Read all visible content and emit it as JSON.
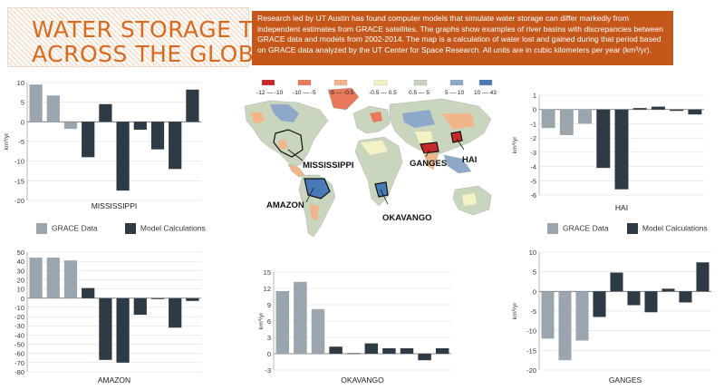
{
  "header": {
    "title_line1": "WATER STORAGE TRENDS",
    "title_line2": "ACROSS THE GLOBE",
    "description": "Research led by UT Austin has found computer models that simulate water storage can differ markedly from independent estimates from GRACE satellites. The graphs show examples of river basins with discrepancies between GRACE data and models from 2002-2014. The map is a calculation of water lost and gained during that period based on GRACE data analyzed by the UT Center for Space Research. All units are in cubic kilometers per year (km³/yr)."
  },
  "colors": {
    "grace": "#9aa5ae",
    "model": "#2e3a44",
    "accent_orange": "#c6571a",
    "title_orange": "#d66a1f"
  },
  "legend": {
    "grace_label": "GRACE Data",
    "model_label": "Model Calculations"
  },
  "map": {
    "legend_bins": [
      {
        "label": "-12 — -10",
        "color": "#c8282a"
      },
      {
        "label": "-10 — -5",
        "color": "#e9785a"
      },
      {
        "label": "-5 — -0.5",
        "color": "#f2b58a"
      },
      {
        "label": "-0.5 — 0.5",
        "color": "#f4f2c4"
      },
      {
        "label": "0.5 — 5",
        "color": "#c5d3b8"
      },
      {
        "label": "5 — 10",
        "color": "#8ea8c9"
      },
      {
        "label": "10 — 43",
        "color": "#4a79b7"
      }
    ],
    "labels": {
      "mississippi": "MISSISSIPPI",
      "amazon": "AMAZON",
      "ganges": "GANGES",
      "hai": "HAI",
      "okavango": "OKAVANGO"
    }
  },
  "chart_data": [
    {
      "type": "bar",
      "title": "MISSISSIPPI",
      "ylabel": "km³/yr",
      "ylim": [
        -20,
        10
      ],
      "yticks": [
        10,
        5,
        0,
        -5,
        -10,
        -15,
        -20
      ],
      "series": [
        {
          "name": "GRACE Data",
          "values": [
            9.5,
            6.7,
            -1.8
          ]
        },
        {
          "name": "Model Calculations",
          "values": [
            -9,
            4.5,
            -17.5,
            -2,
            -7,
            -12,
            8.2
          ]
        }
      ]
    },
    {
      "type": "bar",
      "title": "HAI",
      "ylabel": "km³/yr",
      "ylim": [
        -6,
        1
      ],
      "yticks": [
        1,
        0,
        -1,
        -2,
        -3,
        -4,
        -5,
        -6
      ],
      "series": [
        {
          "name": "GRACE Data",
          "values": [
            -1.3,
            -1.8,
            -1.0
          ]
        },
        {
          "name": "Model Calculations",
          "values": [
            -4.1,
            -5.6,
            0.1,
            0.2,
            -0.1,
            -0.35
          ]
        }
      ]
    },
    {
      "type": "bar",
      "title": "AMAZON",
      "ylim": [
        -80,
        50
      ],
      "yticks": [
        50,
        40,
        30,
        20,
        10,
        0,
        -10,
        -20,
        -30,
        -40,
        -50,
        -60,
        -70,
        -80
      ],
      "series": [
        {
          "name": "GRACE Data",
          "values": [
            44,
            44,
            41
          ]
        },
        {
          "name": "Model Calculations",
          "values": [
            11,
            -67,
            -70,
            -18,
            -1,
            -32,
            -3
          ]
        }
      ]
    },
    {
      "type": "bar",
      "title": "OKAVANGO",
      "ylabel": "km³/yr",
      "ylim": [
        -3,
        15
      ],
      "yticks": [
        15,
        12,
        9,
        6,
        3,
        0,
        -3
      ],
      "series": [
        {
          "name": "GRACE Data",
          "values": [
            11.5,
            13.2,
            8.2
          ]
        },
        {
          "name": "Model Calculations",
          "values": [
            1.3,
            0.1,
            1.9,
            1.0,
            1.0,
            -1.2,
            1.0
          ]
        }
      ]
    },
    {
      "type": "bar",
      "title": "GANGES",
      "ylabel": "km³/yr",
      "ylim": [
        -20,
        10
      ],
      "yticks": [
        10,
        5,
        0,
        -5,
        -10,
        -15,
        -20
      ],
      "series": [
        {
          "name": "GRACE Data",
          "values": [
            -12,
            -17.5,
            -12.5
          ]
        },
        {
          "name": "Model Calculations",
          "values": [
            -6.5,
            4.8,
            -3.5,
            -5.3,
            0.7,
            -2.8,
            7.4
          ]
        }
      ]
    }
  ]
}
